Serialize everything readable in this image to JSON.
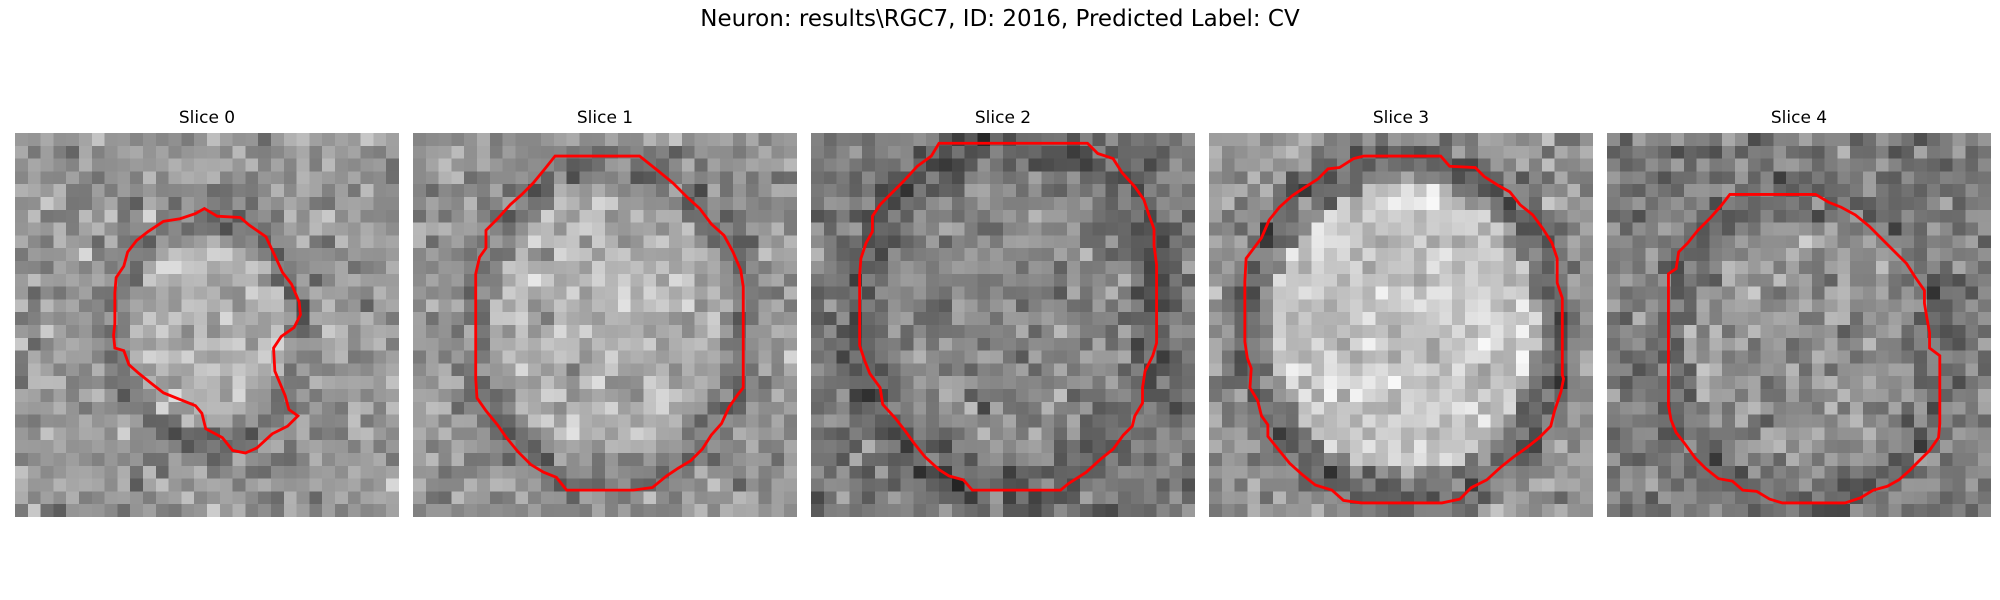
{
  "figure": {
    "title": "Neuron: results\\RGC7, ID: 2016, Predicted Label: CV"
  },
  "colors": {
    "contour": "#ff0000",
    "background": "#ffffff"
  },
  "slices": [
    {
      "label": "Slice 0"
    },
    {
      "label": "Slice 1"
    },
    {
      "label": "Slice 2"
    },
    {
      "label": "Slice 3"
    },
    {
      "label": "Slice 4"
    }
  ]
}
